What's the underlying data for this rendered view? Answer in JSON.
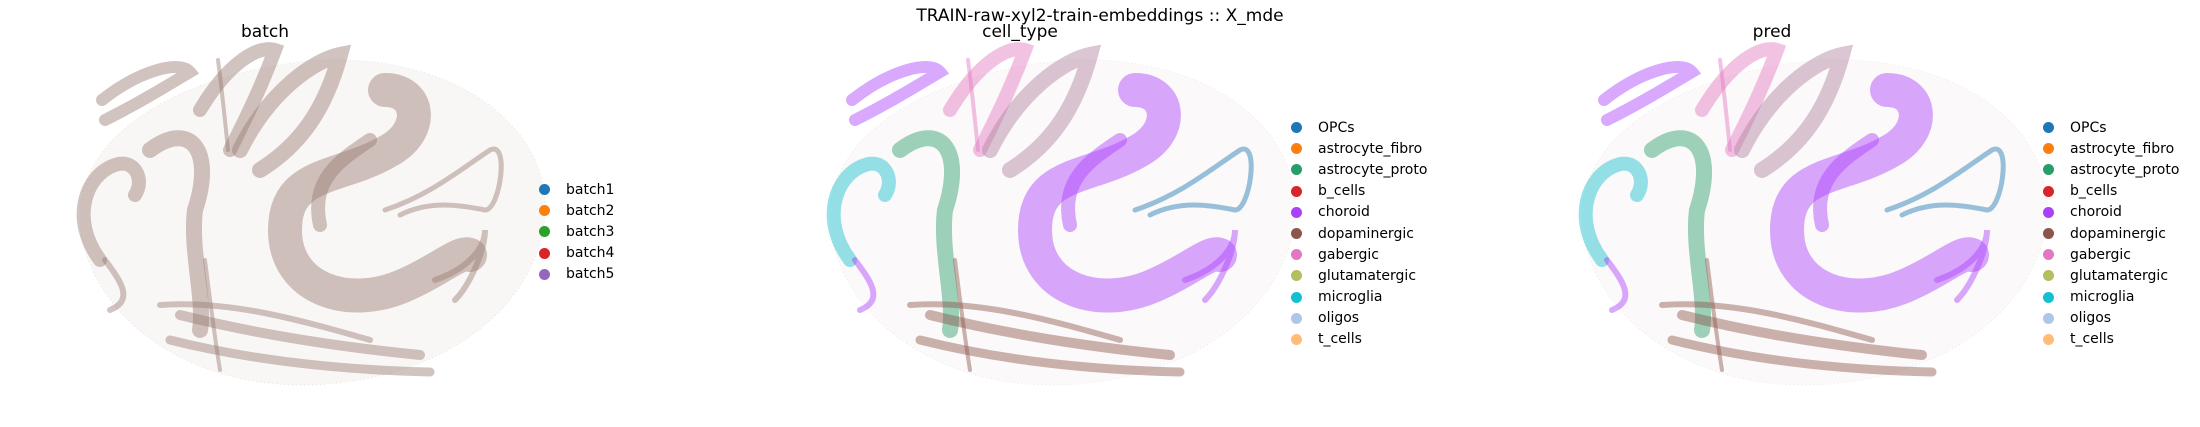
{
  "figure": {
    "suptitle": "TRAIN-raw-xyl2-train-embeddings :: X_mde"
  },
  "chart_data": [
    {
      "type": "scatter",
      "title": "batch",
      "legend_position": "right",
      "legend": [
        {
          "label": "batch1",
          "color": "#1f77b4"
        },
        {
          "label": "batch2",
          "color": "#ff7f0e"
        },
        {
          "label": "batch3",
          "color": "#2ca02c"
        },
        {
          "label": "batch4",
          "color": "#d62728"
        },
        {
          "label": "batch5",
          "color": "#9467bd"
        }
      ]
    },
    {
      "type": "scatter",
      "title": "cell_type",
      "legend_position": "right",
      "legend": [
        {
          "label": "OPCs",
          "color": "#1f77b4"
        },
        {
          "label": "astrocyte_fibro",
          "color": "#ff7f0e"
        },
        {
          "label": "astrocyte_proto",
          "color": "#279e68"
        },
        {
          "label": "b_cells",
          "color": "#d62728"
        },
        {
          "label": "choroid",
          "color": "#aa40fc"
        },
        {
          "label": "dopaminergic",
          "color": "#8c564b"
        },
        {
          "label": "gabergic",
          "color": "#e377c2"
        },
        {
          "label": "glutamatergic",
          "color": "#b5bd61"
        },
        {
          "label": "microglia",
          "color": "#17becf"
        },
        {
          "label": "oligos",
          "color": "#aec7e8"
        },
        {
          "label": "t_cells",
          "color": "#ffbb78"
        }
      ]
    },
    {
      "type": "scatter",
      "title": "pred",
      "legend_position": "right",
      "legend": [
        {
          "label": "OPCs",
          "color": "#1f77b4"
        },
        {
          "label": "astrocyte_fibro",
          "color": "#ff7f0e"
        },
        {
          "label": "astrocyte_proto",
          "color": "#279e68"
        },
        {
          "label": "b_cells",
          "color": "#d62728"
        },
        {
          "label": "choroid",
          "color": "#aa40fc"
        },
        {
          "label": "dopaminergic",
          "color": "#8c564b"
        },
        {
          "label": "gabergic",
          "color": "#e377c2"
        },
        {
          "label": "glutamatergic",
          "color": "#b5bd61"
        },
        {
          "label": "microglia",
          "color": "#17becf"
        },
        {
          "label": "oligos",
          "color": "#aec7e8"
        },
        {
          "label": "t_cells",
          "color": "#ffbb78"
        }
      ]
    }
  ]
}
